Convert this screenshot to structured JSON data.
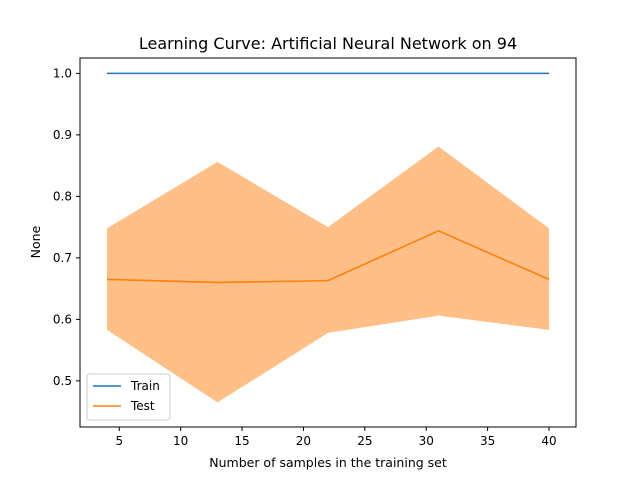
{
  "chart_data": {
    "type": "line",
    "title": "Learning Curve: Artificial Neural Network on 94",
    "xlabel": "Number of samples in the training set",
    "ylabel": "None",
    "x": [
      4,
      13,
      22,
      31,
      40
    ],
    "xlim": [
      1.8,
      42.2
    ],
    "ylim": [
      0.425,
      1.025
    ],
    "xticks": [
      5,
      10,
      15,
      20,
      25,
      30,
      35,
      40
    ],
    "yticks": [
      0.5,
      0.6,
      0.7,
      0.8,
      0.9,
      1.0
    ],
    "xtick_labels": [
      "5",
      "10",
      "15",
      "20",
      "25",
      "30",
      "35",
      "40"
    ],
    "ytick_labels": [
      "0.5",
      "0.6",
      "0.7",
      "0.8",
      "0.9",
      "1.0"
    ],
    "grid": false,
    "legend_position": "lower-left",
    "series": [
      {
        "name": "Train",
        "color": "#1f77b4",
        "values": [
          1.0,
          1.0,
          1.0,
          1.0,
          1.0
        ]
      },
      {
        "name": "Test",
        "color": "#ff7f0e",
        "values": [
          0.665,
          0.66,
          0.663,
          0.744,
          0.665
        ],
        "band_lower": [
          0.583,
          0.465,
          0.578,
          0.606,
          0.583
        ],
        "band_upper": [
          0.748,
          0.856,
          0.75,
          0.881,
          0.748
        ],
        "band_color": "#ffbf87"
      }
    ]
  }
}
